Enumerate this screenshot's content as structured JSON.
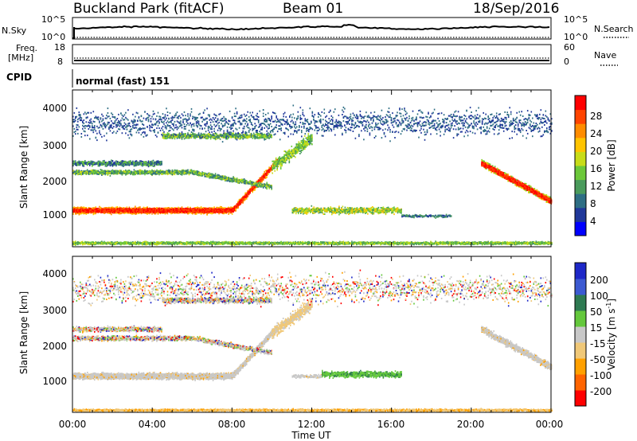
{
  "header": {
    "station": "Buckland Park (fitACF)",
    "beam": "Beam 01",
    "date": "18/Sep/2016"
  },
  "noise_panel": {
    "left_label": "N.Sky",
    "left_ticks": [
      "10^5",
      "10^0"
    ],
    "right_ticks": [
      "10^5",
      "10^0"
    ],
    "right_label": "N.Search"
  },
  "freq_panel": {
    "left_label_1": "Freq.",
    "left_label_2": "[MHz]",
    "left_ticks": [
      "18",
      "8"
    ],
    "right_ticks": [
      "60",
      "0"
    ],
    "right_label": "Nave"
  },
  "cpid": {
    "label": "CPID",
    "text": "normal (fast) 151"
  },
  "colors": {
    "power": [
      "#0000ff",
      "#20389a",
      "#2e6e84",
      "#4a9b5c",
      "#6cc83a",
      "#c8dc18",
      "#ffc400",
      "#ff8c00",
      "#ff4400",
      "#ff0000"
    ],
    "velocity": [
      "#1e28c8",
      "#3c5ad2",
      "#2e7a52",
      "#64c83c",
      "#c8c8c8",
      "#f0c878",
      "#ffa000",
      "#ff6400",
      "#ff0000"
    ]
  },
  "chart_data": [
    {
      "type": "heatmap",
      "name": "power",
      "ylabel": "Slant Range [km]",
      "yticks": [
        "4000",
        "3000",
        "2000",
        "1000"
      ],
      "ylim": [
        180,
        4500
      ],
      "xlim": [
        "00:00",
        "24:00"
      ],
      "colorbar": {
        "label": "Power [dB]",
        "ticks": [
          "28",
          "24",
          "20",
          "16",
          "12",
          "8",
          "4"
        ],
        "range": [
          0,
          32
        ]
      }
    },
    {
      "type": "heatmap",
      "name": "velocity",
      "ylabel": "Slant Range [km]",
      "yticks": [
        "4000",
        "3000",
        "2000",
        "1000"
      ],
      "ylim": [
        180,
        4500
      ],
      "xlim": [
        "00:00",
        "24:00"
      ],
      "xticks": [
        "00:00",
        "04:00",
        "08:00",
        "12:00",
        "16:00",
        "20:00",
        "00:00"
      ],
      "xlabel": "Time UT",
      "colorbar": {
        "label_main": "Velocity [m s",
        "label_sup": "-1",
        "label_end": "]",
        "ticks": [
          "200",
          "100",
          "50",
          "15",
          "-15",
          "-50",
          "-100",
          "-200"
        ]
      }
    }
  ]
}
